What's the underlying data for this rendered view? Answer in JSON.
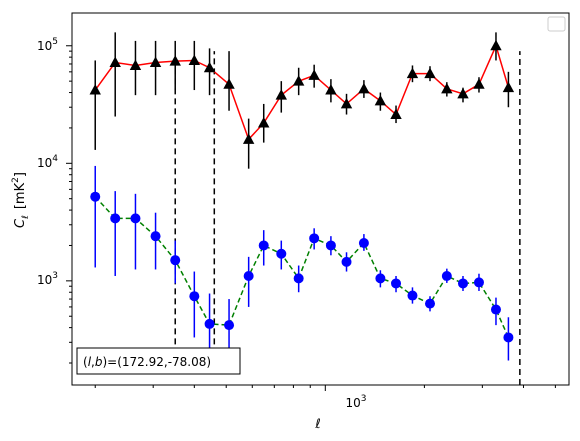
{
  "chart_data": {
    "type": "scatter",
    "title": "",
    "xlabel": "ℓ",
    "ylabel": "C_ℓ [mK²]",
    "ylabel_parts": {
      "sym": "C",
      "sub": "ℓ",
      "unit": "[mK",
      "sup": "2",
      "close": "]"
    },
    "xscale": "log",
    "yscale": "log",
    "xlim": [
      170,
      5500
    ],
    "ylim": [
      130,
      190000
    ],
    "xticks": [
      {
        "value": 1000,
        "base": "10",
        "exp": "3"
      }
    ],
    "yticks": [
      {
        "value": 1000,
        "base": "10",
        "exp": "3"
      },
      {
        "value": 10000,
        "base": "10",
        "exp": "4"
      },
      {
        "value": 100000,
        "base": "10",
        "exp": "5"
      }
    ],
    "vlines": [
      {
        "x": 350,
        "ymin": 160,
        "ymax": 75000
      },
      {
        "x": 460,
        "ymin": 160,
        "ymax": 90000
      },
      {
        "x": 3900,
        "ymin": 130,
        "ymax": 90000
      }
    ],
    "legend": {
      "location": "upper right",
      "entries": []
    },
    "annotation": "(l,b)=(172.92,-78.08)",
    "annotation_parts": {
      "open": "(",
      "l": "l",
      "comma1": ",",
      "b": "b",
      "mid": ")=(172.92,-78.08)"
    },
    "series": [
      {
        "color": "#ff0000",
        "linestyle": "solid",
        "marker": "triangle",
        "marker_color": "#000000",
        "errorbar_color": "#000000",
        "points": [
          {
            "x": 200,
            "y": 42000,
            "lo": 13000,
            "hi": 75000
          },
          {
            "x": 230,
            "y": 72000,
            "lo": 25000,
            "hi": 130000
          },
          {
            "x": 265,
            "y": 68000,
            "lo": 38000,
            "hi": 110000
          },
          {
            "x": 305,
            "y": 72000,
            "lo": 38000,
            "hi": 110000
          },
          {
            "x": 350,
            "y": 74000,
            "lo": 42000,
            "hi": 110000
          },
          {
            "x": 400,
            "y": 75000,
            "lo": 42000,
            "hi": 110000
          },
          {
            "x": 445,
            "y": 65000,
            "lo": 38000,
            "hi": 95000
          },
          {
            "x": 510,
            "y": 47000,
            "lo": 28000,
            "hi": 90000
          },
          {
            "x": 585,
            "y": 16000,
            "lo": 9000,
            "hi": 24000
          },
          {
            "x": 650,
            "y": 22000,
            "lo": 15000,
            "hi": 32000
          },
          {
            "x": 735,
            "y": 38000,
            "lo": 27000,
            "hi": 50000
          },
          {
            "x": 830,
            "y": 50000,
            "lo": 38000,
            "hi": 65000
          },
          {
            "x": 925,
            "y": 56000,
            "lo": 44000,
            "hi": 69000
          },
          {
            "x": 1040,
            "y": 42000,
            "lo": 33000,
            "hi": 52000
          },
          {
            "x": 1160,
            "y": 32000,
            "lo": 26000,
            "hi": 39000
          },
          {
            "x": 1310,
            "y": 43000,
            "lo": 36000,
            "hi": 51000
          },
          {
            "x": 1470,
            "y": 34000,
            "lo": 28000,
            "hi": 40000
          },
          {
            "x": 1640,
            "y": 26000,
            "lo": 22000,
            "hi": 31000
          },
          {
            "x": 1840,
            "y": 58000,
            "lo": 49000,
            "hi": 68000
          },
          {
            "x": 2080,
            "y": 58000,
            "lo": 50000,
            "hi": 67000
          },
          {
            "x": 2340,
            "y": 43000,
            "lo": 37000,
            "hi": 49000
          },
          {
            "x": 2620,
            "y": 39000,
            "lo": 33000,
            "hi": 44000
          },
          {
            "x": 2930,
            "y": 47000,
            "lo": 40000,
            "hi": 54000
          },
          {
            "x": 3300,
            "y": 100000,
            "lo": 75000,
            "hi": 130000
          },
          {
            "x": 3600,
            "y": 44000,
            "lo": 30000,
            "hi": 60000
          }
        ]
      },
      {
        "color": "#008000",
        "linestyle": "dashed",
        "marker": "circle",
        "marker_color": "#0000ff",
        "errorbar_color": "#0000ff",
        "points": [
          {
            "x": 200,
            "y": 5200,
            "lo": 1300,
            "hi": 9500
          },
          {
            "x": 230,
            "y": 3400,
            "lo": 1100,
            "hi": 5800
          },
          {
            "x": 265,
            "y": 3400,
            "lo": 1250,
            "hi": 5500
          },
          {
            "x": 305,
            "y": 2400,
            "lo": 1250,
            "hi": 3800
          },
          {
            "x": 350,
            "y": 1500,
            "lo": 950,
            "hi": 2200
          },
          {
            "x": 400,
            "y": 740,
            "lo": 330,
            "hi": 1200
          },
          {
            "x": 445,
            "y": 430,
            "lo": 200,
            "hi": 780
          },
          {
            "x": 510,
            "y": 420,
            "lo": 220,
            "hi": 700
          },
          {
            "x": 585,
            "y": 1100,
            "lo": 600,
            "hi": 1600
          },
          {
            "x": 650,
            "y": 2000,
            "lo": 1350,
            "hi": 2700
          },
          {
            "x": 735,
            "y": 1700,
            "lo": 1250,
            "hi": 2200
          },
          {
            "x": 830,
            "y": 1050,
            "lo": 800,
            "hi": 1350
          },
          {
            "x": 925,
            "y": 2300,
            "lo": 1850,
            "hi": 2800
          },
          {
            "x": 1040,
            "y": 2000,
            "lo": 1650,
            "hi": 2400
          },
          {
            "x": 1160,
            "y": 1450,
            "lo": 1200,
            "hi": 1750
          },
          {
            "x": 1310,
            "y": 2100,
            "lo": 1800,
            "hi": 2500
          },
          {
            "x": 1470,
            "y": 1050,
            "lo": 880,
            "hi": 1230
          },
          {
            "x": 1640,
            "y": 950,
            "lo": 800,
            "hi": 1100
          },
          {
            "x": 1840,
            "y": 750,
            "lo": 640,
            "hi": 880
          },
          {
            "x": 2080,
            "y": 640,
            "lo": 550,
            "hi": 740
          },
          {
            "x": 2340,
            "y": 1100,
            "lo": 960,
            "hi": 1270
          },
          {
            "x": 2620,
            "y": 950,
            "lo": 820,
            "hi": 1100
          },
          {
            "x": 2930,
            "y": 970,
            "lo": 820,
            "hi": 1150
          },
          {
            "x": 3300,
            "y": 570,
            "lo": 420,
            "hi": 720
          },
          {
            "x": 3600,
            "y": 330,
            "lo": 210,
            "hi": 490
          }
        ]
      }
    ]
  }
}
